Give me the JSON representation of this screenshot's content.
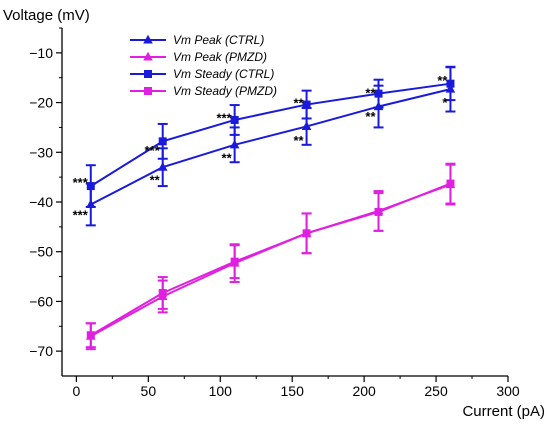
{
  "chart_data": {
    "type": "line",
    "ylabel": "Voltage (mV)",
    "xlabel": "Current (pA)",
    "xlim": [
      -10,
      300
    ],
    "ylim": [
      -75,
      -5
    ],
    "xticks": [
      0,
      50,
      100,
      150,
      200,
      250,
      300
    ],
    "yticks": [
      -70,
      -60,
      -50,
      -40,
      -30,
      -20,
      -10
    ],
    "x": [
      10,
      60,
      110,
      160,
      210,
      260
    ],
    "legend_position": "top-left",
    "grid": false,
    "series": [
      {
        "name": "Vm Peak (CTRL)",
        "color": "#1a1adc",
        "marker": "triangle",
        "values": [
          -40.5,
          -33.0,
          -28.5,
          -24.8,
          -20.8,
          -17.3
        ],
        "errors": [
          4.2,
          3.8,
          3.5,
          3.7,
          4.2,
          4.5
        ]
      },
      {
        "name": "Vm Peak (PMZD)",
        "color": "#e020e0",
        "marker": "triangle",
        "values": [
          -67.0,
          -59.0,
          -52.3,
          -46.3,
          -41.8,
          -36.5
        ],
        "errors": [
          2.6,
          3.2,
          3.8,
          4.0,
          4.0,
          4.0
        ]
      },
      {
        "name": "Vm Steady (CTRL)",
        "color": "#1a1adc",
        "marker": "square",
        "values": [
          -36.8,
          -27.8,
          -23.5,
          -20.4,
          -18.2,
          -16.2
        ],
        "errors": [
          4.2,
          3.5,
          3.0,
          2.8,
          2.8,
          3.3
        ]
      },
      {
        "name": "Vm Steady (PMZD)",
        "color": "#e020e0",
        "marker": "square",
        "values": [
          -66.8,
          -58.3,
          -52.0,
          -46.3,
          -42.0,
          -36.3
        ],
        "errors": [
          2.4,
          3.2,
          3.3,
          4.0,
          3.8,
          4.0
        ]
      }
    ],
    "annotations": [
      {
        "text": "***",
        "x": 10,
        "y": -36.0,
        "anchor": "end"
      },
      {
        "text": "***",
        "x": 10,
        "y": -42.5,
        "anchor": "end"
      },
      {
        "text": "***",
        "x": 60,
        "y": -29.5,
        "anchor": "end"
      },
      {
        "text": "**",
        "x": 60,
        "y": -35.5,
        "anchor": "end"
      },
      {
        "text": "***",
        "x": 110,
        "y": -23.0,
        "anchor": "end"
      },
      {
        "text": "**",
        "x": 110,
        "y": -31.0,
        "anchor": "end"
      },
      {
        "text": "**",
        "x": 160,
        "y": -20.0,
        "anchor": "end"
      },
      {
        "text": "**",
        "x": 160,
        "y": -27.5,
        "anchor": "end"
      },
      {
        "text": "**",
        "x": 210,
        "y": -18.0,
        "anchor": "end"
      },
      {
        "text": "**",
        "x": 210,
        "y": -22.7,
        "anchor": "end"
      },
      {
        "text": "**",
        "x": 260,
        "y": -15.5,
        "anchor": "end"
      },
      {
        "text": "*",
        "x": 260,
        "y": -19.9,
        "anchor": "end"
      }
    ]
  }
}
